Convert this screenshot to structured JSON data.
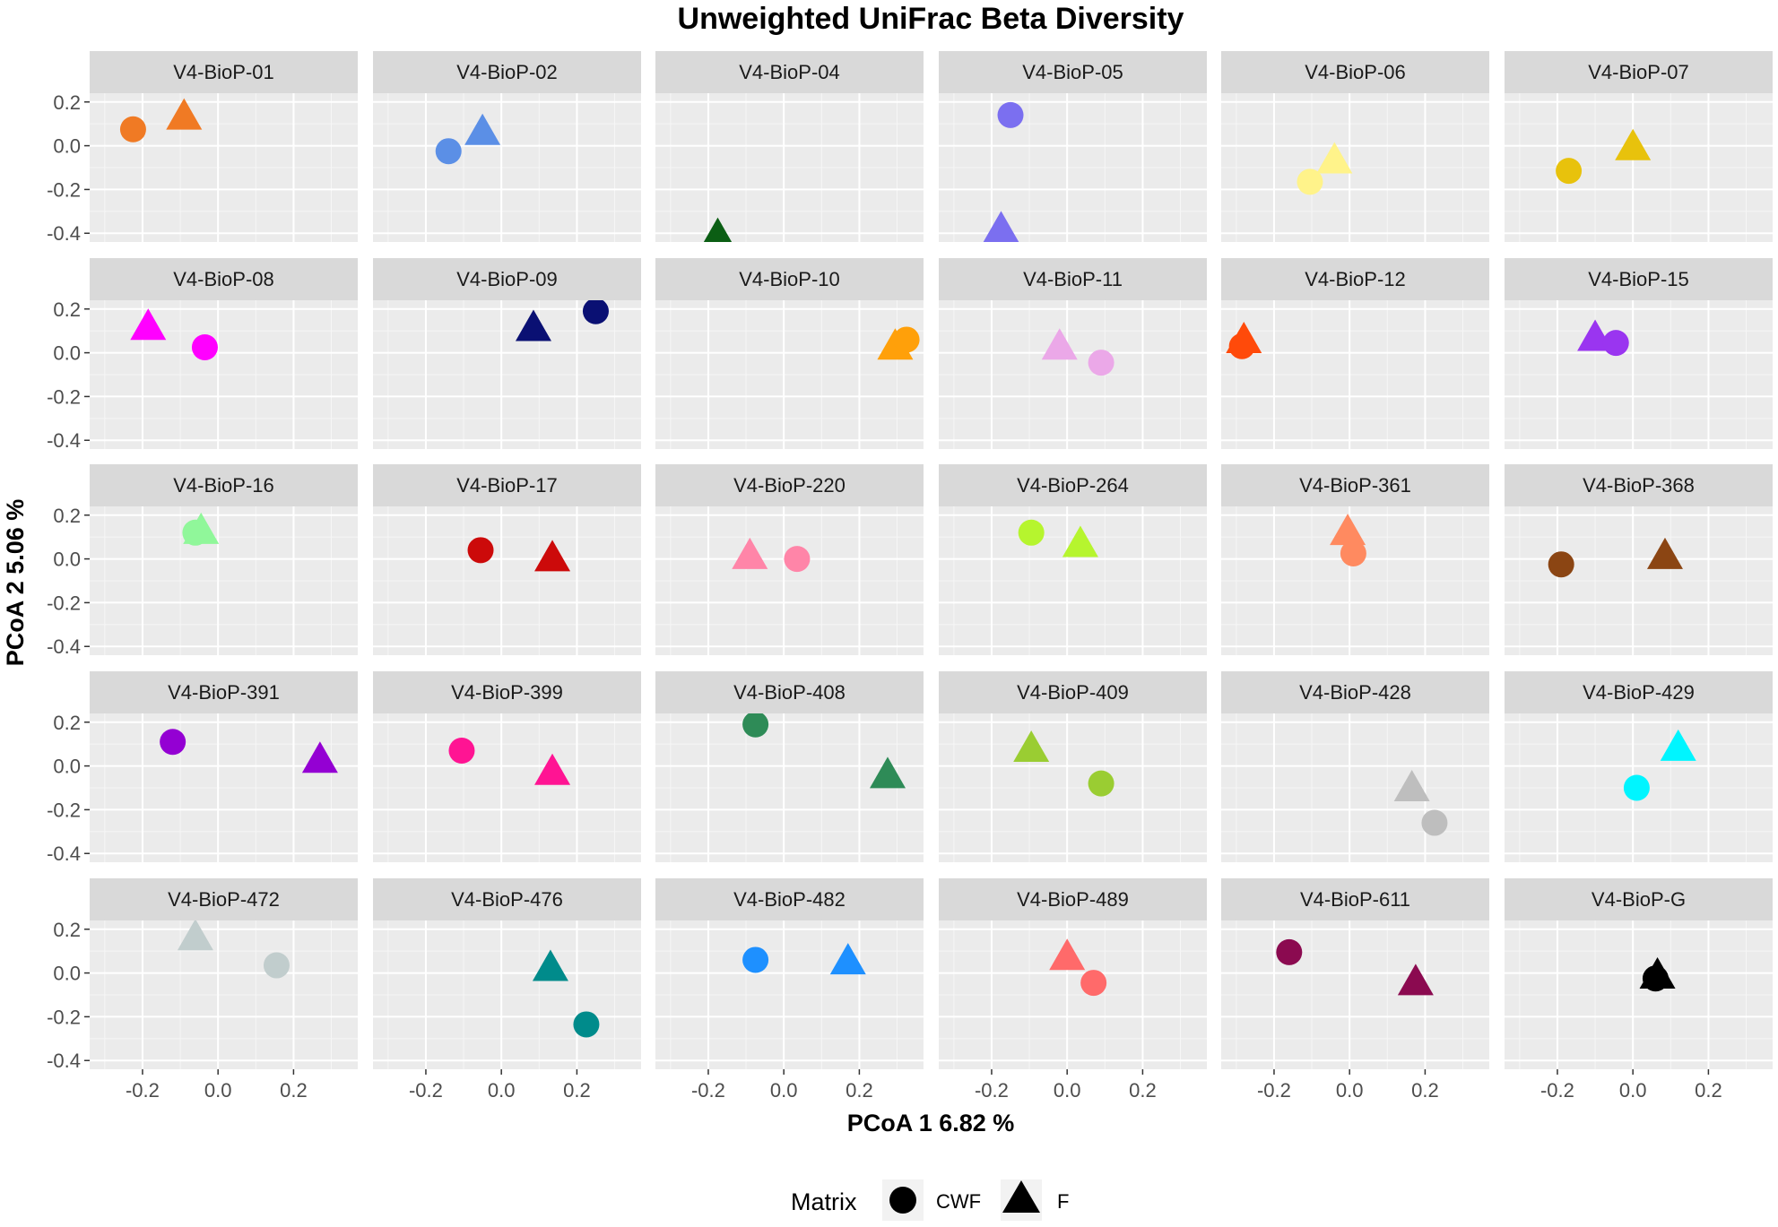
{
  "chart_data": {
    "type": "scatter",
    "title": "Unweighted UniFrac Beta Diversity",
    "xlabel": "PCoA 1  6.82 %",
    "ylabel": "PCoA 2 5.06 %",
    "xlim": [
      -0.34,
      0.37
    ],
    "ylim": [
      -0.44,
      0.24
    ],
    "x_ticks": [
      -0.2,
      0.0,
      0.2
    ],
    "x_tick_labels": [
      "-0.2",
      "0.0",
      "0.2"
    ],
    "y_ticks": [
      0.2,
      0.0,
      -0.2,
      -0.4
    ],
    "y_tick_labels": [
      "0.2",
      "0.0",
      "-0.2",
      "-0.4"
    ],
    "grid": true,
    "legend": {
      "title": "Matrix",
      "placement": "bottom",
      "entries": [
        {
          "label": "CWF",
          "shape": "circle"
        },
        {
          "label": "F",
          "shape": "triangle"
        }
      ]
    },
    "facets": [
      {
        "label": "V4-BioP-01",
        "color": "#F07A24",
        "CWF": [
          -0.225,
          0.075
        ],
        "F": [
          -0.09,
          0.135
        ]
      },
      {
        "label": "V4-BioP-02",
        "color": "#5B8FE6",
        "CWF": [
          -0.14,
          -0.025
        ],
        "F": [
          -0.05,
          0.065
        ]
      },
      {
        "label": "V4-BioP-04",
        "color": "#0B5E14",
        "CWF": null,
        "F": [
          -0.175,
          -0.41
        ]
      },
      {
        "label": "V4-BioP-05",
        "color": "#7B6FF0",
        "CWF": [
          -0.15,
          0.14
        ],
        "F": [
          -0.175,
          -0.38
        ]
      },
      {
        "label": "V4-BioP-06",
        "color": "#FFF38A",
        "CWF": [
          -0.105,
          -0.165
        ],
        "F": [
          -0.04,
          -0.065
        ]
      },
      {
        "label": "V4-BioP-07",
        "color": "#E8C20C",
        "CWF": [
          -0.17,
          -0.115
        ],
        "F": [
          0.0,
          -0.005
        ]
      },
      {
        "label": "V4-BioP-08",
        "color": "#FF00FF",
        "CWF": [
          -0.035,
          0.025
        ],
        "F": [
          -0.185,
          0.12
        ]
      },
      {
        "label": "V4-BioP-09",
        "color": "#0A1073",
        "CWF": [
          0.25,
          0.19
        ],
        "F": [
          0.085,
          0.115
        ]
      },
      {
        "label": "V4-BioP-10",
        "color": "#FFA00A",
        "CWF": [
          0.325,
          0.06
        ],
        "F": [
          0.295,
          0.03
        ]
      },
      {
        "label": "V4-BioP-11",
        "color": "#EBA8E8",
        "CWF": [
          0.09,
          -0.045
        ],
        "F": [
          -0.02,
          0.03
        ]
      },
      {
        "label": "V4-BioP-12",
        "color": "#FF4A0A",
        "CWF": [
          -0.285,
          0.03
        ],
        "F": [
          -0.28,
          0.06
        ]
      },
      {
        "label": "V4-BioP-15",
        "color": "#9A35F0",
        "CWF": [
          -0.045,
          0.045
        ],
        "F": [
          -0.1,
          0.07
        ]
      },
      {
        "label": "V4-BioP-16",
        "color": "#90F79A",
        "CWF": [
          -0.06,
          0.12
        ],
        "F": [
          -0.045,
          0.13
        ]
      },
      {
        "label": "V4-BioP-17",
        "color": "#CC0A0A",
        "CWF": [
          -0.055,
          0.04
        ],
        "F": [
          0.135,
          0.005
        ]
      },
      {
        "label": "V4-BioP-220",
        "color": "#FF85A8",
        "CWF": [
          0.035,
          0.0
        ],
        "F": [
          -0.09,
          0.015
        ]
      },
      {
        "label": "V4-BioP-264",
        "color": "#B6F52E",
        "CWF": [
          -0.095,
          0.12
        ],
        "F": [
          0.035,
          0.07
        ]
      },
      {
        "label": "V4-BioP-361",
        "color": "#FF8A60",
        "CWF": [
          0.01,
          0.025
        ],
        "F": [
          -0.005,
          0.125
        ]
      },
      {
        "label": "V4-BioP-368",
        "color": "#8B4513",
        "CWF": [
          -0.19,
          -0.025
        ],
        "F": [
          0.085,
          0.015
        ]
      },
      {
        "label": "V4-BioP-391",
        "color": "#9400D3",
        "CWF": [
          -0.12,
          0.11
        ],
        "F": [
          0.27,
          0.03
        ]
      },
      {
        "label": "V4-BioP-399",
        "color": "#FF1493",
        "CWF": [
          -0.105,
          0.07
        ],
        "F": [
          0.135,
          -0.025
        ]
      },
      {
        "label": "V4-BioP-408",
        "color": "#2E8B57",
        "CWF": [
          -0.075,
          0.19
        ],
        "F": [
          0.275,
          -0.04
        ]
      },
      {
        "label": "V4-BioP-409",
        "color": "#9ACD32",
        "CWF": [
          0.09,
          -0.08
        ],
        "F": [
          -0.095,
          0.08
        ]
      },
      {
        "label": "V4-BioP-428",
        "color": "#BEBEBE",
        "CWF": [
          0.225,
          -0.26
        ],
        "F": [
          0.165,
          -0.1
        ]
      },
      {
        "label": "V4-BioP-429",
        "color": "#00F5FF",
        "CWF": [
          0.01,
          -0.1
        ],
        "F": [
          0.12,
          0.085
        ]
      },
      {
        "label": "V4-BioP-472",
        "color": "#C1CDCD",
        "CWF": [
          0.155,
          0.035
        ],
        "F": [
          -0.06,
          0.165
        ]
      },
      {
        "label": "V4-BioP-476",
        "color": "#008B8B",
        "CWF": [
          0.225,
          -0.235
        ],
        "F": [
          0.13,
          0.025
        ]
      },
      {
        "label": "V4-BioP-482",
        "color": "#1E90FF",
        "CWF": [
          -0.075,
          0.06
        ],
        "F": [
          0.17,
          0.055
        ]
      },
      {
        "label": "V4-BioP-489",
        "color": "#FF6A6A",
        "CWF": [
          0.07,
          -0.045
        ],
        "F": [
          0.0,
          0.075
        ]
      },
      {
        "label": "V4-BioP-611",
        "color": "#8B0A50",
        "CWF": [
          -0.16,
          0.095
        ],
        "F": [
          0.175,
          -0.04
        ]
      },
      {
        "label": "V4-BioP-G",
        "color": "#000000",
        "CWF": [
          0.06,
          -0.025
        ],
        "F": [
          0.065,
          -0.01
        ]
      }
    ]
  }
}
